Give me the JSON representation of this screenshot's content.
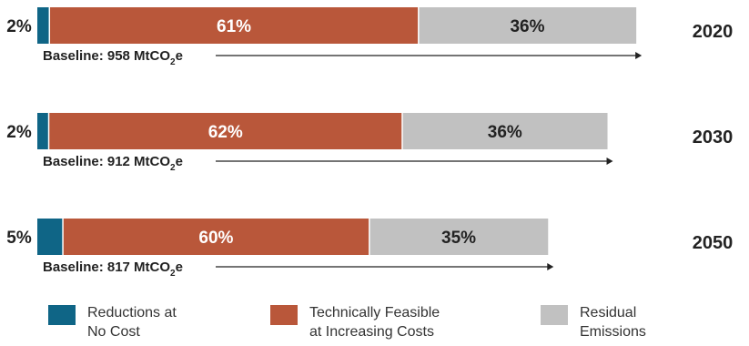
{
  "chart_data": {
    "type": "bar",
    "stacked": true,
    "orientation": "horizontal",
    "categories": [
      "2020",
      "2030",
      "2050"
    ],
    "baseline_labels": [
      "Baseline: 958 MtCO",
      "Baseline: 912 MtCO",
      "Baseline: 817 MtCO"
    ],
    "baseline_subscript": "2",
    "baseline_suffix": "e",
    "baselines": [
      958,
      912,
      817
    ],
    "series": [
      {
        "name": "Reductions at No Cost",
        "legend_lines": [
          "Reductions at",
          "No Cost"
        ],
        "values": [
          2,
          2,
          5
        ],
        "labels": [
          "2%",
          "2%",
          "5%"
        ],
        "color": "#0f6586"
      },
      {
        "name": "Technically Feasible at Increasing Costs",
        "legend_lines": [
          "Technically Feasible",
          "at Increasing Costs"
        ],
        "values": [
          61,
          62,
          60
        ],
        "labels": [
          "61%",
          "62%",
          "60%"
        ],
        "color": "#b9573a"
      },
      {
        "name": "Residual Emissions",
        "legend_lines": [
          "Residual",
          "Emissions"
        ],
        "values": [
          36,
          36,
          35
        ],
        "labels": [
          "36%",
          "36%",
          "35%"
        ],
        "color": "#c1c1c1"
      }
    ]
  }
}
